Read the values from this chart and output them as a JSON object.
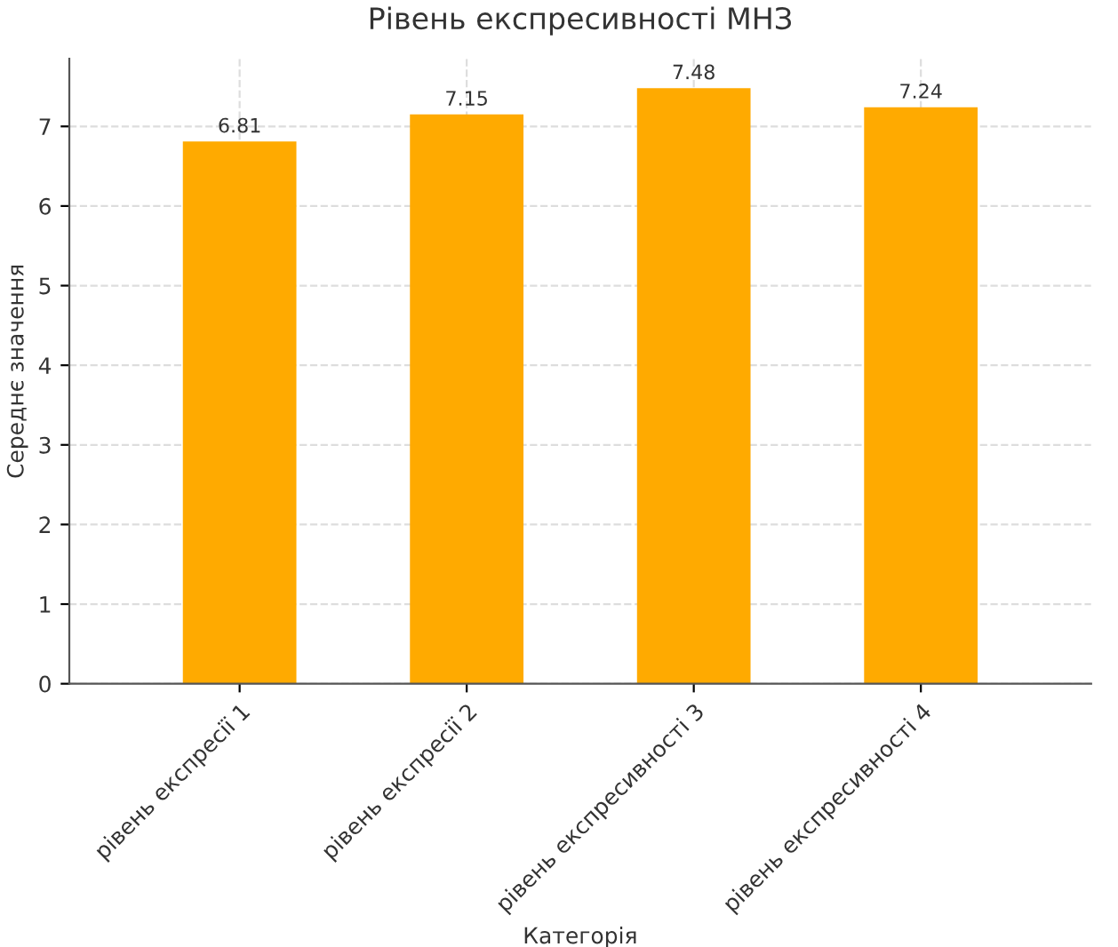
{
  "chart_data": {
    "type": "bar",
    "title": "Рівень експресивності МНЗ",
    "xlabel": "Категорія",
    "ylabel": "Середнє значення",
    "categories": [
      "рівень експресії 1",
      "рівень експресії 2",
      "рівень експресивності 3",
      "рівень експресивності 4"
    ],
    "values": [
      6.81,
      7.15,
      7.48,
      7.24
    ],
    "color": "#ffaa00",
    "ylim": [
      0,
      7.85
    ],
    "yticks": [
      0,
      1,
      2,
      3,
      4,
      5,
      6,
      7
    ],
    "grid": true,
    "data_labels": true
  }
}
